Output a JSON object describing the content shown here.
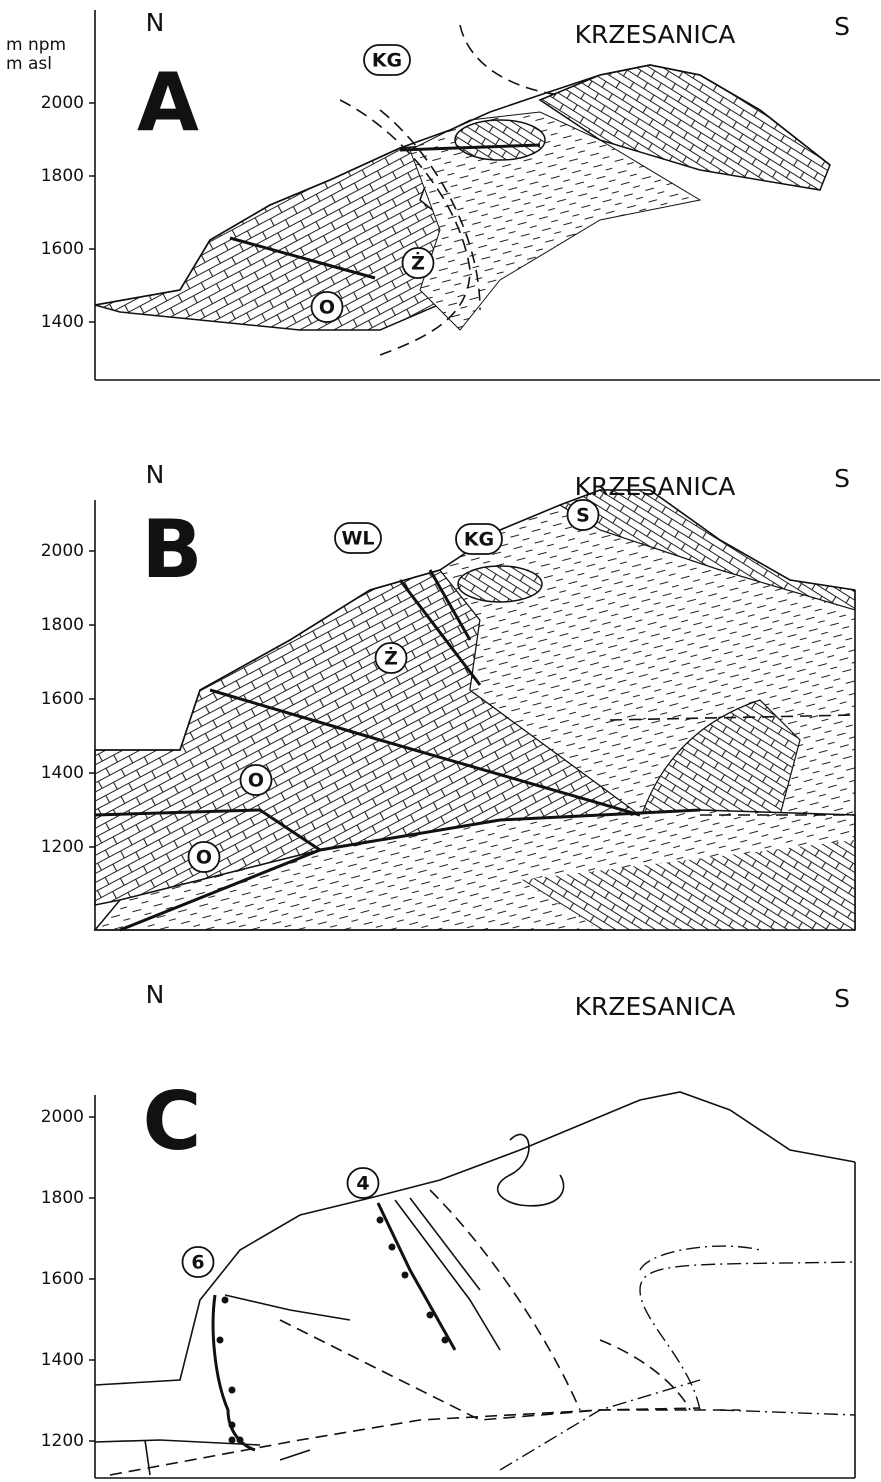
{
  "axis_label": [
    "m npm",
    "m asl"
  ],
  "panels": [
    {
      "letter": "A",
      "north": "N",
      "south": "S",
      "title": "KRZESANICA",
      "yticks": [
        2000,
        1800,
        1600,
        1400
      ],
      "labels": [
        "KG",
        "Ż",
        "O"
      ]
    },
    {
      "letter": "B",
      "north": "N",
      "south": "S",
      "title": "KRZESANICA",
      "yticks": [
        2000,
        1800,
        1600,
        1400,
        1200
      ],
      "labels": [
        "WL",
        "KG",
        "S",
        "Ż",
        "O",
        "O"
      ]
    },
    {
      "letter": "C",
      "north": "N",
      "south": "S",
      "title": "KRZESANICA",
      "yticks": [
        2000,
        1800,
        1600,
        1400,
        1200
      ],
      "labels": [
        "4",
        "6"
      ]
    }
  ]
}
